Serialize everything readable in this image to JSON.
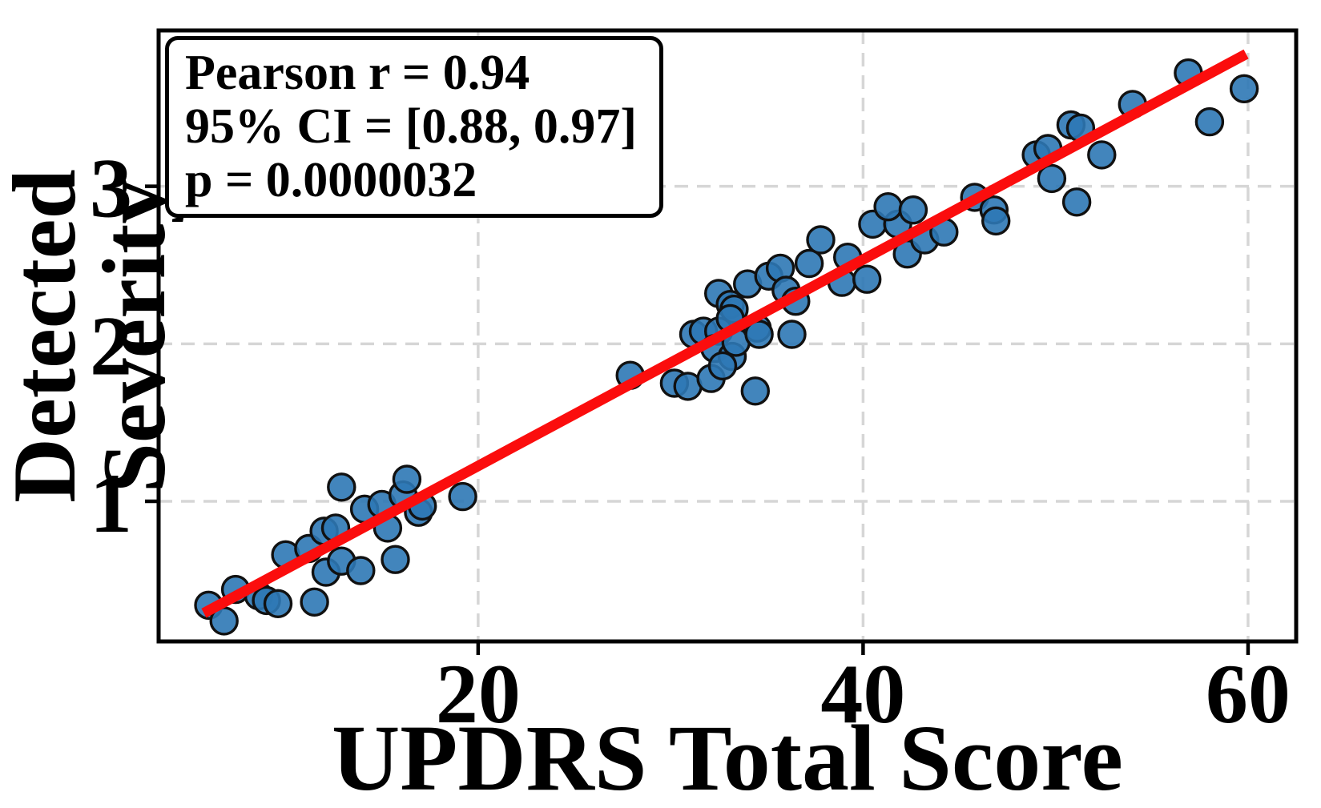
{
  "figure": {
    "annotation": {
      "line1": "Pearson r = 0.94",
      "line2": "95% CI = [0.88, 0.97]",
      "line3": "p = 0.0000032"
    }
  },
  "chart_data": {
    "type": "scatter",
    "title": "",
    "xlabel": "UPDRS Total Score",
    "ylabel": "Detected Severity",
    "xticks": [
      20,
      40,
      60
    ],
    "yticks": [
      1,
      2,
      3
    ],
    "xlim": [
      3.4,
      62.5
    ],
    "ylim": [
      0.11,
      3.99
    ],
    "grid": true,
    "legend_position": "none",
    "stats": {
      "pearson_r": 0.94,
      "ci_95": [
        0.88,
        0.97
      ],
      "p_value": 3.2e-06
    },
    "points": [
      [
        6.0,
        0.34
      ],
      [
        6.8,
        0.24
      ],
      [
        7.4,
        0.44
      ],
      [
        8.6,
        0.4
      ],
      [
        9.0,
        0.37
      ],
      [
        9.6,
        0.35
      ],
      [
        11.5,
        0.36
      ],
      [
        10.0,
        0.66
      ],
      [
        11.2,
        0.7
      ],
      [
        12.0,
        0.81
      ],
      [
        12.6,
        0.83
      ],
      [
        12.1,
        0.55
      ],
      [
        12.9,
        0.62
      ],
      [
        12.9,
        1.09
      ],
      [
        13.9,
        0.56
      ],
      [
        14.1,
        0.95
      ],
      [
        15.0,
        0.98
      ],
      [
        15.3,
        0.83
      ],
      [
        15.7,
        0.63
      ],
      [
        16.1,
        1.04
      ],
      [
        16.3,
        1.14
      ],
      [
        16.9,
        0.93
      ],
      [
        17.1,
        0.97
      ],
      [
        19.2,
        1.03
      ],
      [
        27.9,
        1.8
      ],
      [
        30.2,
        1.75
      ],
      [
        30.9,
        1.73
      ],
      [
        32.1,
        1.78
      ],
      [
        31.2,
        2.06
      ],
      [
        31.7,
        2.08
      ],
      [
        32.5,
        2.08
      ],
      [
        32.3,
        1.97
      ],
      [
        32.5,
        2.32
      ],
      [
        33.1,
        2.25
      ],
      [
        33.3,
        2.22
      ],
      [
        33.1,
        2.16
      ],
      [
        33.2,
        1.92
      ],
      [
        33.4,
        2.01
      ],
      [
        32.7,
        1.86
      ],
      [
        34.0,
        2.38
      ],
      [
        34.5,
        2.1
      ],
      [
        34.6,
        2.06
      ],
      [
        34.4,
        1.7
      ],
      [
        35.1,
        2.43
      ],
      [
        35.7,
        2.48
      ],
      [
        36.0,
        2.34
      ],
      [
        36.5,
        2.27
      ],
      [
        36.3,
        2.06
      ],
      [
        37.2,
        2.51
      ],
      [
        37.8,
        2.66
      ],
      [
        38.9,
        2.39
      ],
      [
        39.2,
        2.55
      ],
      [
        40.2,
        2.41
      ],
      [
        40.5,
        2.76
      ],
      [
        41.8,
        2.76
      ],
      [
        42.3,
        2.57
      ],
      [
        43.2,
        2.66
      ],
      [
        41.3,
        2.87
      ],
      [
        42.6,
        2.85
      ],
      [
        44.2,
        2.71
      ],
      [
        45.8,
        2.93
      ],
      [
        46.8,
        2.85
      ],
      [
        46.9,
        2.78
      ],
      [
        49.0,
        3.2
      ],
      [
        49.6,
        3.24
      ],
      [
        49.8,
        3.05
      ],
      [
        50.8,
        3.39
      ],
      [
        51.3,
        3.37
      ],
      [
        51.1,
        2.9
      ],
      [
        52.4,
        3.2
      ],
      [
        54.0,
        3.52
      ],
      [
        56.9,
        3.72
      ],
      [
        58.0,
        3.41
      ],
      [
        59.8,
        3.62
      ]
    ],
    "trendline": {
      "x1": 5.75,
      "y1": 0.29,
      "x2": 59.9,
      "y2": 3.84
    },
    "colors": {
      "point_fill": "#2e78b5",
      "point_edge": "#111111",
      "trend": "#fb0d0d",
      "grid": "#d6d6d6",
      "spine": "#000000",
      "text": "#000000",
      "annotation_bg": "#ffffff"
    }
  }
}
